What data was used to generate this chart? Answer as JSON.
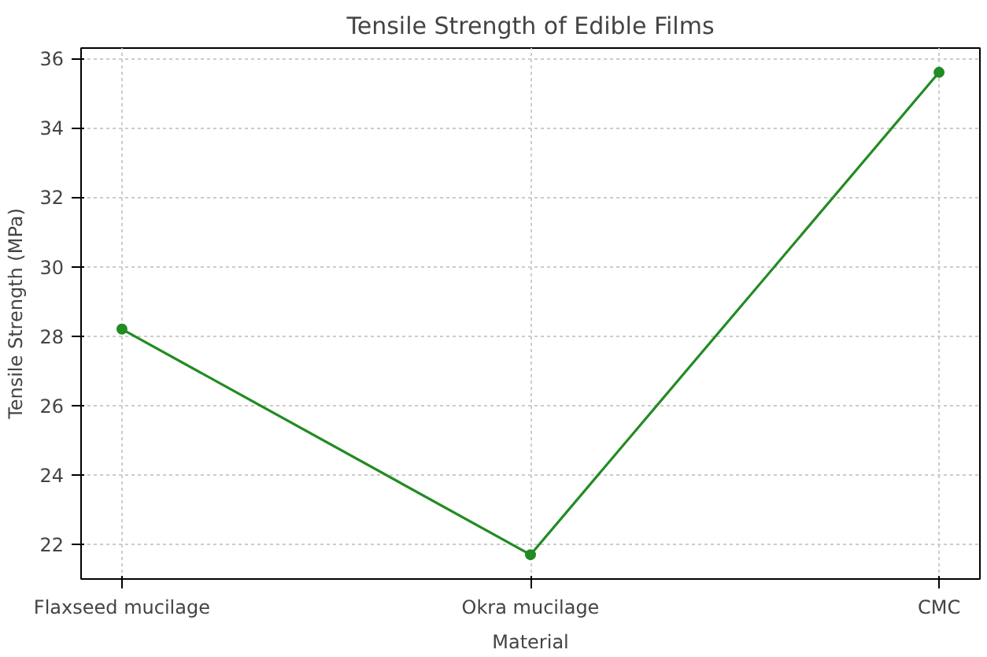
{
  "chart_data": {
    "type": "line",
    "title": "Tensile Strength of Edible Films",
    "xlabel": "Material",
    "ylabel": "Tensile Strength (MPa)",
    "categories": [
      "Flaxseed mucilage",
      "Okra mucilage",
      "CMC"
    ],
    "series": [
      {
        "color": "#228b22",
        "values": [
          28.2,
          21.7,
          35.6
        ]
      }
    ],
    "ylim": [
      21.0,
      36.3
    ],
    "yticks": [
      22,
      24,
      26,
      28,
      30,
      32,
      34,
      36
    ],
    "grid": true,
    "marker": "circle",
    "line_style": "solid"
  }
}
